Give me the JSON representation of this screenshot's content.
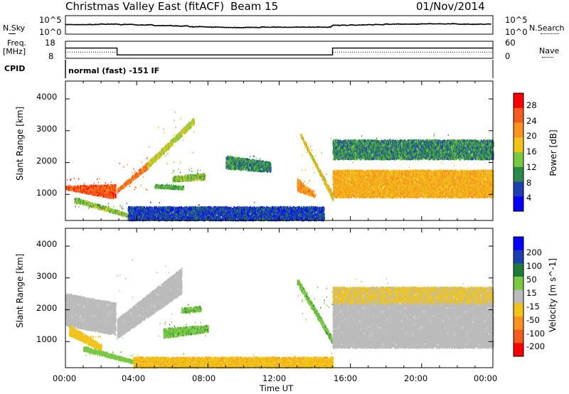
{
  "header": {
    "title": "Christmas Valley East (fitACF)",
    "beam": "Beam 15",
    "date": "01/Nov/2014"
  },
  "side_labels": {
    "nsky": "N.Sky",
    "freq": "Freq.",
    "freq_unit": "[MHz]",
    "cpid": "CPID",
    "nsearch": "N.Search",
    "nave": "Nave",
    "cpid_text": "normal (fast) -151 IF"
  },
  "noise_axis_ticks": {
    "left": [
      "10^5",
      "10^0"
    ],
    "right": [
      "10^5",
      "10^0"
    ]
  },
  "freq_axis_ticks": {
    "left": [
      "18",
      "8"
    ],
    "right": [
      "60",
      "0"
    ]
  },
  "colors": {
    "power_scale": [
      "#0000ff",
      "#1e3fb0",
      "#2a8a4a",
      "#7ac943",
      "#f0c419",
      "#f7931e",
      "#f25c1d",
      "#ff0000"
    ],
    "velocity_scale": [
      "#0000ff",
      "#1e3fb0",
      "#1f7a3a",
      "#7ac943",
      "#bbbbbb",
      "#f0c419",
      "#f7931e",
      "#f25c1d",
      "#ff0000"
    ],
    "velocity_ground": "#bbbbbb"
  },
  "chart_data": [
    {
      "type": "line",
      "name": "noise-panel",
      "x_range_hours": [
        0,
        24
      ],
      "series": [
        {
          "name": "N.Sky",
          "values": [
            2.6,
            2.6,
            2.7,
            2.6,
            2.5,
            2.3,
            2.2,
            2.0,
            1.9,
            1.8,
            1.8,
            1.9,
            1.9,
            1.9,
            1.9,
            2.4,
            2.5,
            2.6,
            2.7,
            2.7,
            2.8,
            2.8,
            2.7,
            2.7
          ]
        },
        {
          "name": "N.Search",
          "values": [
            2.5,
            2.5,
            2.6,
            2.5,
            2.4,
            2.2,
            2.1,
            1.9,
            1.8,
            1.7,
            1.7,
            1.8,
            1.8,
            1.8,
            1.8,
            2.3,
            2.4,
            2.5,
            2.6,
            2.6,
            2.7,
            2.7,
            2.6,
            2.6
          ]
        }
      ]
    },
    {
      "type": "line",
      "name": "frequency-panel",
      "x": [
        0,
        2.9,
        2.9,
        15.0,
        15.0,
        24
      ],
      "series": [
        {
          "name": "Freq.",
          "values": [
            14,
            14,
            10,
            10,
            14,
            14
          ]
        },
        {
          "name": "Nave",
          "values": [
            22,
            22,
            12,
            12,
            22,
            22
          ]
        }
      ]
    },
    {
      "type": "heatmap",
      "name": "power",
      "xlabel": "",
      "ylabel": "Slant Range [km]",
      "x_range_hours": [
        0,
        24
      ],
      "ylim": [
        180,
        4560
      ],
      "yticks": [
        1000,
        2000,
        3000,
        4000
      ],
      "colorbar": {
        "label": "Power [dB]",
        "range": [
          0,
          32
        ],
        "ticks": [
          4,
          8,
          12,
          16,
          20,
          24,
          28
        ]
      },
      "features": [
        {
          "kind": "band",
          "t": [
            0,
            2.8
          ],
          "r0": [
            1150,
            850
          ],
          "r1": [
            1250,
            1300
          ],
          "power": 26,
          "spread": 250
        },
        {
          "kind": "band",
          "t": [
            2.9,
            4.6
          ],
          "r0": [
            1050,
            1800
          ],
          "r1": [
            1150,
            2000
          ],
          "power": 24,
          "spread": 220
        },
        {
          "kind": "band",
          "t": [
            4.6,
            7.2
          ],
          "r0": [
            1800,
            3200
          ],
          "r1": [
            2000,
            3400
          ],
          "power": 16,
          "spread": 300
        },
        {
          "kind": "band",
          "t": [
            6.0,
            7.8
          ],
          "r0": [
            1400,
            1450
          ],
          "r1": [
            1550,
            1650
          ],
          "power": 14,
          "spread": 150
        },
        {
          "kind": "band",
          "t": [
            5.0,
            6.6
          ],
          "r0": [
            1200,
            1150
          ],
          "r1": [
            1300,
            1250
          ],
          "power": 12,
          "spread": 100
        },
        {
          "kind": "band",
          "t": [
            9.0,
            11.5
          ],
          "r0": [
            1800,
            1700
          ],
          "r1": [
            2200,
            2000
          ],
          "power": 10,
          "spread": 250
        },
        {
          "kind": "band",
          "t": [
            13.2,
            15.0
          ],
          "r0": [
            2800,
            800
          ],
          "r1": [
            2900,
            1000
          ],
          "power": 18,
          "spread": 150
        },
        {
          "kind": "band",
          "t": [
            13.0,
            14.0
          ],
          "r0": [
            1100,
            900
          ],
          "r1": [
            1500,
            1000
          ],
          "power": 22,
          "spread": 150
        },
        {
          "kind": "band",
          "t": [
            15.0,
            24.0
          ],
          "r0": [
            900,
            900
          ],
          "r1": [
            1750,
            1750
          ],
          "power": 20,
          "spread": 300
        },
        {
          "kind": "band",
          "t": [
            15.0,
            24.0
          ],
          "r0": [
            2100,
            2100
          ],
          "r1": [
            2700,
            2700
          ],
          "power": 10,
          "spread": 300
        },
        {
          "kind": "band",
          "t": [
            0.5,
            3.5
          ],
          "r0": [
            750,
            280
          ],
          "r1": [
            900,
            380
          ],
          "power": 14,
          "spread": 150
        },
        {
          "kind": "band",
          "t": [
            3.5,
            14.5
          ],
          "r0": [
            180,
            180
          ],
          "r1": [
            600,
            600
          ],
          "power": 6,
          "spread": 200
        }
      ]
    },
    {
      "type": "heatmap",
      "name": "velocity",
      "xlabel": "Time UT",
      "ylabel": "Slant Range [km]",
      "x_range_hours": [
        0,
        24
      ],
      "xticks": [
        "00:00",
        "04:00",
        "08:00",
        "12:00",
        "16:00",
        "20:00",
        "00:00"
      ],
      "ylim": [
        180,
        4560
      ],
      "yticks": [
        1000,
        2000,
        3000,
        4000
      ],
      "colorbar": {
        "label": "Velocity [m s^-1]",
        "range": [
          -250,
          250
        ],
        "ticks": [
          200,
          100,
          50,
          15,
          -15,
          -50,
          -100,
          -200
        ]
      },
      "features": [
        {
          "kind": "band",
          "t": [
            0,
            2.8
          ],
          "r0": [
            1500,
            1200
          ],
          "r1": [
            2500,
            2200
          ],
          "vel": 0,
          "spread": 300
        },
        {
          "kind": "band",
          "t": [
            2.9,
            6.5
          ],
          "r0": [
            1100,
            2500
          ],
          "r1": [
            1700,
            3300
          ],
          "vel": 0,
          "spread": 300
        },
        {
          "kind": "band",
          "t": [
            0.2,
            2.0
          ],
          "r0": [
            1200,
            700
          ],
          "r1": [
            1500,
            900
          ],
          "vel": -30,
          "spread": 250
        },
        {
          "kind": "band",
          "t": [
            5.5,
            8.0
          ],
          "r0": [
            1100,
            1300
          ],
          "r1": [
            1400,
            1500
          ],
          "vel": 40,
          "spread": 150
        },
        {
          "kind": "band",
          "t": [
            6.5,
            7.6
          ],
          "r0": [
            1900,
            1950
          ],
          "r1": [
            2050,
            2100
          ],
          "vel": 40,
          "spread": 100
        },
        {
          "kind": "band",
          "t": [
            1.0,
            3.8
          ],
          "r0": [
            700,
            300
          ],
          "r1": [
            850,
            400
          ],
          "vel": 30,
          "spread": 150
        },
        {
          "kind": "band",
          "t": [
            3.8,
            15.0
          ],
          "r0": [
            180,
            180
          ],
          "r1": [
            500,
            500
          ],
          "vel": -40,
          "spread": 200
        },
        {
          "kind": "band",
          "t": [
            13.0,
            15.0
          ],
          "r0": [
            2800,
            900
          ],
          "r1": [
            3000,
            1100
          ],
          "vel": 40,
          "spread": 150
        },
        {
          "kind": "band",
          "t": [
            15.0,
            24.0
          ],
          "r0": [
            800,
            800
          ],
          "r1": [
            2200,
            2200
          ],
          "vel": 0,
          "spread": 200
        },
        {
          "kind": "band",
          "t": [
            15.0,
            24.0
          ],
          "r0": [
            2200,
            2200
          ],
          "r1": [
            2700,
            2700
          ],
          "vel": -20,
          "spread": 300
        }
      ]
    }
  ]
}
